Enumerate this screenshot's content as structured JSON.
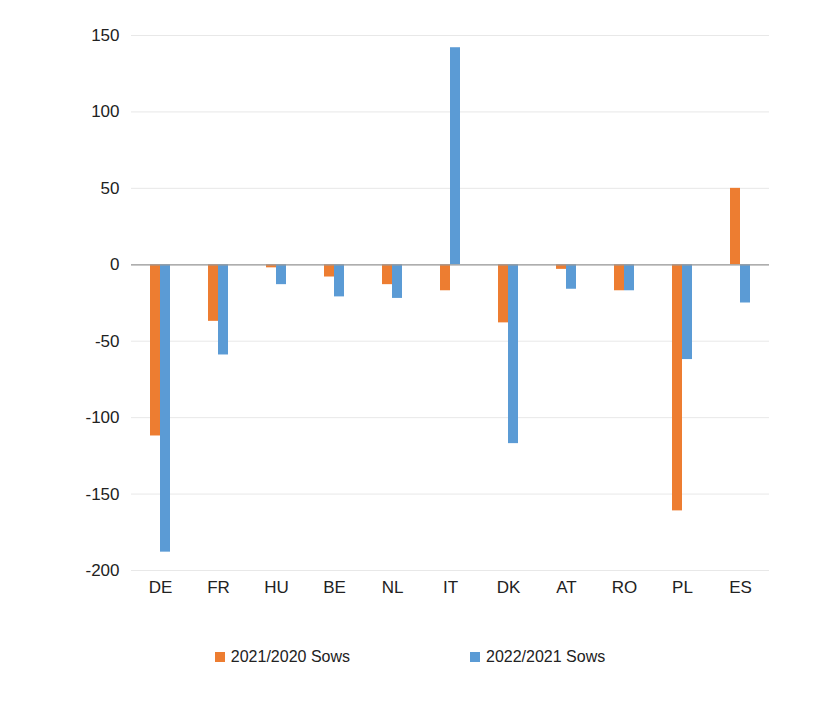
{
  "chart_data": {
    "type": "bar",
    "categories": [
      "DE",
      "FR",
      "HU",
      "BE",
      "NL",
      "IT",
      "DK",
      "AT",
      "RO",
      "PL",
      "ES"
    ],
    "series": [
      {
        "name": "2021/2020 Sows",
        "color": "#ED7D31",
        "values": [
          -112,
          -37,
          -2,
          -8,
          -13,
          -17,
          -38,
          -3,
          -17,
          -161,
          50
        ]
      },
      {
        "name": "2022/2021 Sows",
        "color": "#5B9BD5",
        "values": [
          -188,
          -59,
          -13,
          -21,
          -22,
          142,
          -117,
          -16,
          -17,
          -62,
          -25
        ]
      }
    ],
    "ylim": [
      -200,
      150
    ],
    "yticks": [
      -200,
      -150,
      -100,
      -50,
      0,
      50,
      100,
      150
    ],
    "grid": true,
    "legend": "bottom"
  }
}
